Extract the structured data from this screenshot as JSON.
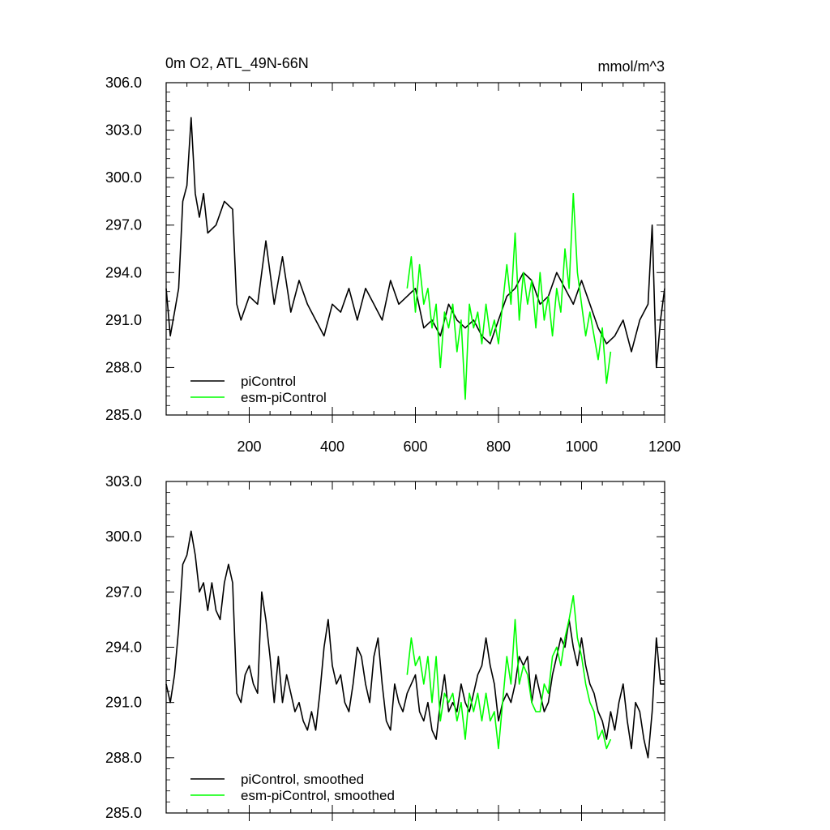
{
  "chart_data": [
    {
      "type": "line",
      "title": "0m O2, ATL_49N-66N",
      "units_label": "mmol/m^3",
      "xlim": [
        0,
        1200
      ],
      "ylim": [
        285.0,
        306.0
      ],
      "x_ticks": [
        200,
        400,
        600,
        800,
        1000,
        1200
      ],
      "y_ticks": [
        "306.0",
        "303.0",
        "300.0",
        "297.0",
        "294.0",
        "291.0",
        "288.0",
        "285.0"
      ],
      "legend": {
        "position": "bottom-left"
      },
      "series": [
        {
          "name": "piControl",
          "color": "#000000",
          "x": [
            0,
            10,
            20,
            30,
            40,
            50,
            60,
            70,
            80,
            90,
            100,
            120,
            140,
            160,
            170,
            180,
            200,
            220,
            240,
            260,
            280,
            300,
            320,
            340,
            360,
            380,
            400,
            420,
            440,
            460,
            480,
            500,
            520,
            540,
            560,
            580,
            600,
            620,
            640,
            660,
            680,
            700,
            720,
            740,
            760,
            780,
            800,
            820,
            840,
            860,
            880,
            900,
            920,
            940,
            960,
            980,
            1000,
            1020,
            1040,
            1060,
            1080,
            1100,
            1120,
            1140,
            1160,
            1170,
            1180,
            1190,
            1200
          ],
          "y": [
            293.0,
            290.0,
            291.5,
            293.0,
            298.5,
            299.5,
            303.8,
            299.0,
            297.5,
            299.0,
            296.5,
            297.0,
            298.5,
            298.0,
            292.0,
            291.0,
            292.5,
            292.0,
            296.0,
            292.0,
            295.0,
            291.5,
            293.5,
            292.0,
            291.0,
            290.0,
            292.0,
            291.5,
            293.0,
            291.0,
            293.0,
            292.0,
            291.0,
            293.5,
            292.0,
            292.5,
            293.0,
            290.5,
            291.0,
            290.0,
            292.0,
            291.0,
            290.5,
            291.0,
            290.0,
            289.5,
            291.0,
            292.5,
            293.0,
            294.0,
            293.5,
            292.0,
            292.5,
            294.0,
            293.0,
            292.0,
            293.5,
            292.0,
            290.5,
            289.5,
            290.0,
            291.0,
            289.0,
            291.0,
            292.0,
            297.0,
            288.0,
            291.0,
            293.0
          ]
        },
        {
          "name": "esm-piControl",
          "color": "#00ff00",
          "x": [
            580,
            590,
            600,
            610,
            620,
            630,
            640,
            650,
            660,
            670,
            680,
            690,
            700,
            710,
            720,
            730,
            740,
            750,
            760,
            770,
            780,
            790,
            800,
            810,
            820,
            830,
            840,
            850,
            860,
            870,
            880,
            890,
            900,
            910,
            920,
            930,
            940,
            950,
            960,
            970,
            980,
            990,
            1000,
            1010,
            1020,
            1030,
            1040,
            1050,
            1060,
            1070
          ],
          "y": [
            293.0,
            295.0,
            291.5,
            294.5,
            292.0,
            293.0,
            290.5,
            292.0,
            288.0,
            291.5,
            290.5,
            292.0,
            289.0,
            291.0,
            286.0,
            292.0,
            290.5,
            291.5,
            289.5,
            292.0,
            290.0,
            291.0,
            289.5,
            292.0,
            294.5,
            292.0,
            296.5,
            291.0,
            294.0,
            292.0,
            293.5,
            290.5,
            294.0,
            291.0,
            292.5,
            290.0,
            293.0,
            291.5,
            295.5,
            293.0,
            299.0,
            294.0,
            292.0,
            290.0,
            291.5,
            290.0,
            288.5,
            290.5,
            287.0,
            289.0
          ]
        }
      ]
    },
    {
      "type": "line",
      "xlim": [
        0,
        1200
      ],
      "ylim": [
        285.0,
        303.0
      ],
      "y_ticks": [
        "303.0",
        "300.0",
        "297.0",
        "294.0",
        "291.0",
        "288.0",
        "285.0"
      ],
      "legend": {
        "position": "bottom-left"
      },
      "series": [
        {
          "name": "piControl, smoothed",
          "color": "#000000",
          "x": [
            0,
            10,
            20,
            30,
            40,
            50,
            60,
            70,
            80,
            90,
            100,
            110,
            120,
            130,
            140,
            150,
            160,
            170,
            180,
            190,
            200,
            210,
            220,
            230,
            240,
            250,
            260,
            270,
            280,
            290,
            300,
            310,
            320,
            330,
            340,
            350,
            360,
            370,
            380,
            390,
            400,
            410,
            420,
            430,
            440,
            450,
            460,
            470,
            480,
            490,
            500,
            510,
            520,
            530,
            540,
            550,
            560,
            570,
            580,
            590,
            600,
            610,
            620,
            630,
            640,
            650,
            660,
            670,
            680,
            690,
            700,
            710,
            720,
            730,
            740,
            750,
            760,
            770,
            780,
            790,
            800,
            810,
            820,
            830,
            840,
            850,
            860,
            870,
            880,
            890,
            900,
            910,
            920,
            930,
            940,
            950,
            960,
            970,
            980,
            990,
            1000,
            1010,
            1020,
            1030,
            1040,
            1050,
            1060,
            1070,
            1080,
            1090,
            1100,
            1110,
            1120,
            1130,
            1140,
            1150,
            1160,
            1170,
            1180,
            1190,
            1200
          ],
          "y": [
            292.0,
            291.0,
            292.5,
            295.0,
            298.5,
            299.0,
            300.3,
            299.0,
            297.0,
            297.5,
            296.0,
            297.5,
            296.0,
            295.5,
            297.5,
            298.5,
            297.5,
            291.5,
            291.0,
            292.5,
            293.0,
            292.0,
            291.5,
            297.0,
            295.5,
            293.5,
            291.0,
            293.5,
            291.0,
            292.5,
            291.5,
            290.5,
            291.0,
            290.0,
            289.5,
            290.5,
            289.5,
            291.5,
            294.0,
            295.5,
            293.0,
            292.0,
            292.5,
            291.0,
            290.5,
            292.0,
            294.0,
            293.5,
            292.0,
            291.0,
            293.5,
            294.5,
            292.0,
            290.0,
            289.5,
            292.0,
            291.0,
            290.5,
            291.5,
            292.0,
            292.5,
            290.5,
            290.0,
            291.0,
            289.5,
            289.0,
            291.0,
            292.5,
            290.5,
            291.0,
            290.5,
            292.0,
            291.0,
            290.5,
            291.5,
            292.5,
            293.0,
            294.5,
            293.0,
            292.0,
            290.0,
            291.0,
            291.5,
            291.0,
            292.0,
            293.5,
            293.0,
            293.5,
            291.0,
            292.5,
            291.5,
            290.5,
            291.0,
            292.5,
            293.5,
            294.5,
            294.0,
            295.5,
            294.0,
            293.0,
            294.5,
            293.0,
            292.0,
            291.5,
            290.5,
            290.0,
            289.0,
            290.5,
            289.5,
            291.0,
            292.0,
            290.0,
            288.5,
            291.0,
            290.5,
            289.0,
            288.0,
            290.5,
            294.5,
            292.0,
            292.0
          ]
        },
        {
          "name": "esm-piControl, smoothed",
          "color": "#00ff00",
          "x": [
            580,
            590,
            600,
            610,
            620,
            630,
            640,
            650,
            660,
            670,
            680,
            690,
            700,
            710,
            720,
            730,
            740,
            750,
            760,
            770,
            780,
            790,
            800,
            810,
            820,
            830,
            840,
            850,
            860,
            870,
            880,
            890,
            900,
            910,
            920,
            930,
            940,
            950,
            960,
            970,
            980,
            990,
            1000,
            1010,
            1020,
            1030,
            1040,
            1050,
            1060,
            1070
          ],
          "y": [
            292.5,
            294.5,
            293.0,
            293.5,
            292.0,
            293.5,
            291.0,
            293.5,
            290.0,
            291.5,
            291.0,
            291.5,
            290.0,
            291.0,
            289.0,
            291.5,
            290.5,
            291.5,
            290.0,
            291.5,
            290.0,
            290.5,
            288.5,
            291.0,
            293.5,
            292.0,
            295.5,
            292.0,
            293.0,
            292.5,
            291.0,
            290.5,
            290.5,
            292.0,
            291.5,
            293.5,
            294.0,
            293.0,
            294.5,
            295.5,
            296.8,
            294.5,
            293.5,
            292.0,
            291.0,
            290.5,
            289.0,
            289.5,
            288.5,
            289.0
          ]
        }
      ]
    }
  ]
}
